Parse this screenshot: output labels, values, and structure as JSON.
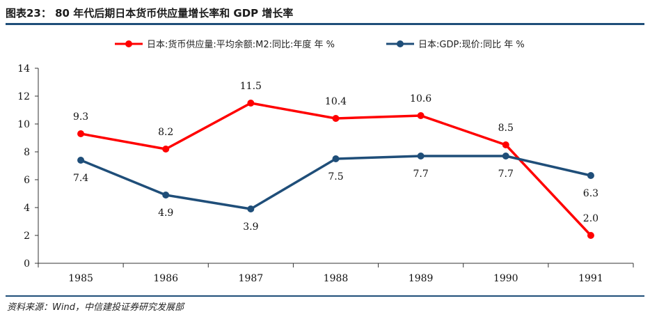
{
  "header": {
    "title": "图表23： 80 年代后期日本货币供应量增长率和 GDP 增长率"
  },
  "footer": {
    "source": "资料来源：Wind，中信建投证券研究发展部"
  },
  "chart_data": {
    "type": "line",
    "categories": [
      "1985",
      "1986",
      "1987",
      "1988",
      "1989",
      "1990",
      "1991"
    ],
    "ylim": [
      0,
      14
    ],
    "yticks": [
      "0",
      "2",
      "4",
      "6",
      "8",
      "10",
      "12",
      "14"
    ],
    "grid": false,
    "legend_position": "top",
    "series": [
      {
        "name": "日本:货币供应量:平均余额:M2:同比:年度 年 %",
        "color": "#ff0000",
        "values": [
          9.3,
          8.2,
          11.5,
          10.4,
          10.6,
          8.5,
          2.0
        ],
        "labels": [
          "9.3",
          "8.2",
          "11.5",
          "10.4",
          "10.6",
          "8.5",
          "2.0"
        ]
      },
      {
        "name": "日本:GDP:现价:同比 年 %",
        "color": "#1f4e79",
        "values": [
          7.4,
          4.9,
          3.9,
          7.5,
          7.7,
          7.7,
          6.3
        ],
        "labels": [
          "7.4",
          "4.9",
          "3.9",
          "7.5",
          "7.7",
          "7.7",
          "6.3"
        ]
      }
    ]
  }
}
